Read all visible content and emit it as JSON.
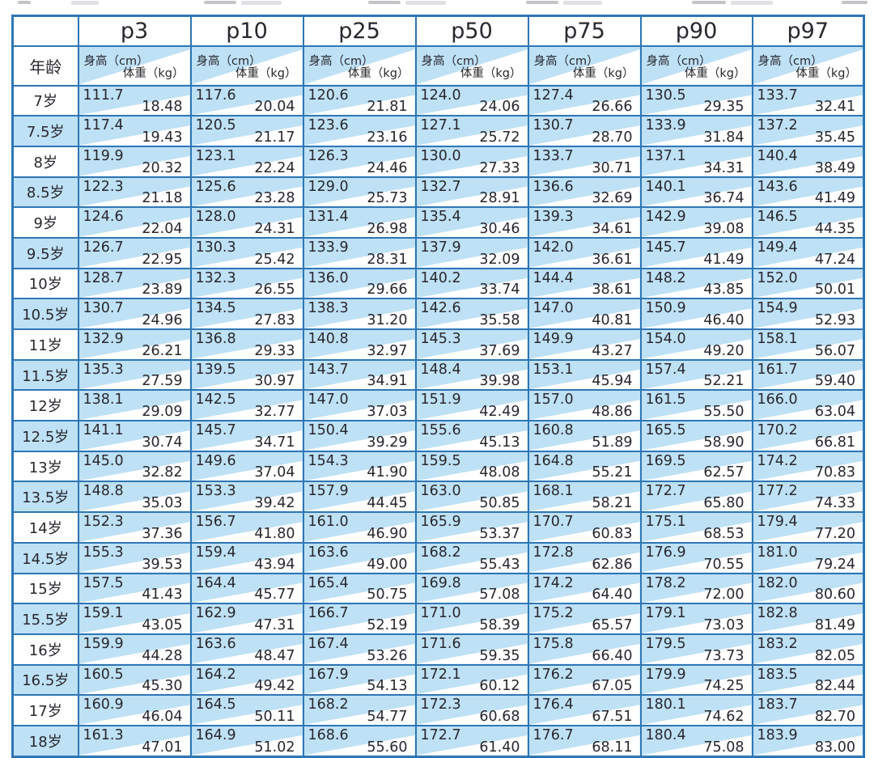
{
  "colors": {
    "border_blue": "#2e76b6",
    "cell_blue": "#bfe1f5",
    "text_dark": "#28282e"
  },
  "chart_data": {
    "type": "table",
    "columns": [
      "年龄",
      "p3",
      "p10",
      "p25",
      "p50",
      "p75",
      "p90",
      "p97"
    ],
    "unit_labels": {
      "height": "身高（cm）",
      "weight": "体重（kg）"
    },
    "rows": [
      {
        "age": "7岁",
        "cells": [
          [
            "111.7",
            "18.48"
          ],
          [
            "117.6",
            "20.04"
          ],
          [
            "120.6",
            "21.81"
          ],
          [
            "124.0",
            "24.06"
          ],
          [
            "127.4",
            "26.66"
          ],
          [
            "130.5",
            "29.35"
          ],
          [
            "133.7",
            "32.41"
          ]
        ]
      },
      {
        "age": "7.5岁",
        "cells": [
          [
            "117.4",
            "19.43"
          ],
          [
            "120.5",
            "21.17"
          ],
          [
            "123.6",
            "23.16"
          ],
          [
            "127.1",
            "25.72"
          ],
          [
            "130.7",
            "28.70"
          ],
          [
            "133.9",
            "31.84"
          ],
          [
            "137.2",
            "35.45"
          ]
        ]
      },
      {
        "age": "8岁",
        "cells": [
          [
            "119.9",
            "20.32"
          ],
          [
            "123.1",
            "22.24"
          ],
          [
            "126.3",
            "24.46"
          ],
          [
            "130.0",
            "27.33"
          ],
          [
            "133.7",
            "30.71"
          ],
          [
            "137.1",
            "34.31"
          ],
          [
            "140.4",
            "38.49"
          ]
        ]
      },
      {
        "age": "8.5岁",
        "cells": [
          [
            "122.3",
            "21.18"
          ],
          [
            "125.6",
            "23.28"
          ],
          [
            "129.0",
            "25.73"
          ],
          [
            "132.7",
            "28.91"
          ],
          [
            "136.6",
            "32.69"
          ],
          [
            "140.1",
            "36.74"
          ],
          [
            "143.6",
            "41.49"
          ]
        ]
      },
      {
        "age": "9岁",
        "cells": [
          [
            "124.6",
            "22.04"
          ],
          [
            "128.0",
            "24.31"
          ],
          [
            "131.4",
            "26.98"
          ],
          [
            "135.4",
            "30.46"
          ],
          [
            "139.3",
            "34.61"
          ],
          [
            "142.9",
            "39.08"
          ],
          [
            "146.5",
            "44.35"
          ]
        ]
      },
      {
        "age": "9.5岁",
        "cells": [
          [
            "126.7",
            "22.95"
          ],
          [
            "130.3",
            "25.42"
          ],
          [
            "133.9",
            "28.31"
          ],
          [
            "137.9",
            "32.09"
          ],
          [
            "142.0",
            "36.61"
          ],
          [
            "145.7",
            "41.49"
          ],
          [
            "149.4",
            "47.24"
          ]
        ]
      },
      {
        "age": "10岁",
        "cells": [
          [
            "128.7",
            "23.89"
          ],
          [
            "132.3",
            "26.55"
          ],
          [
            "136.0",
            "29.66"
          ],
          [
            "140.2",
            "33.74"
          ],
          [
            "144.4",
            "38.61"
          ],
          [
            "148.2",
            "43.85"
          ],
          [
            "152.0",
            "50.01"
          ]
        ]
      },
      {
        "age": "10.5岁",
        "cells": [
          [
            "130.7",
            "24.96"
          ],
          [
            "134.5",
            "27.83"
          ],
          [
            "138.3",
            "31.20"
          ],
          [
            "142.6",
            "35.58"
          ],
          [
            "147.0",
            "40.81"
          ],
          [
            "150.9",
            "46.40"
          ],
          [
            "154.9",
            "52.93"
          ]
        ]
      },
      {
        "age": "11岁",
        "cells": [
          [
            "132.9",
            "26.21"
          ],
          [
            "136.8",
            "29.33"
          ],
          [
            "140.8",
            "32.97"
          ],
          [
            "145.3",
            "37.69"
          ],
          [
            "149.9",
            "43.27"
          ],
          [
            "154.0",
            "49.20"
          ],
          [
            "158.1",
            "56.07"
          ]
        ]
      },
      {
        "age": "11.5岁",
        "cells": [
          [
            "135.3",
            "27.59"
          ],
          [
            "139.5",
            "30.97"
          ],
          [
            "143.7",
            "34.91"
          ],
          [
            "148.4",
            "39.98"
          ],
          [
            "153.1",
            "45.94"
          ],
          [
            "157.4",
            "52.21"
          ],
          [
            "161.7",
            "59.40"
          ]
        ]
      },
      {
        "age": "12岁",
        "cells": [
          [
            "138.1",
            "29.09"
          ],
          [
            "142.5",
            "32.77"
          ],
          [
            "147.0",
            "37.03"
          ],
          [
            "151.9",
            "42.49"
          ],
          [
            "157.0",
            "48.86"
          ],
          [
            "161.5",
            "55.50"
          ],
          [
            "166.0",
            "63.04"
          ]
        ]
      },
      {
        "age": "12.5岁",
        "cells": [
          [
            "141.1",
            "30.74"
          ],
          [
            "145.7",
            "34.71"
          ],
          [
            "150.4",
            "39.29"
          ],
          [
            "155.6",
            "45.13"
          ],
          [
            "160.8",
            "51.89"
          ],
          [
            "165.5",
            "58.90"
          ],
          [
            "170.2",
            "66.81"
          ]
        ]
      },
      {
        "age": "13岁",
        "cells": [
          [
            "145.0",
            "32.82"
          ],
          [
            "149.6",
            "37.04"
          ],
          [
            "154.3",
            "41.90"
          ],
          [
            "159.5",
            "48.08"
          ],
          [
            "164.8",
            "55.21"
          ],
          [
            "169.5",
            "62.57"
          ],
          [
            "174.2",
            "70.83"
          ]
        ]
      },
      {
        "age": "13.5岁",
        "cells": [
          [
            "148.8",
            "35.03"
          ],
          [
            "153.3",
            "39.42"
          ],
          [
            "157.9",
            "44.45"
          ],
          [
            "163.0",
            "50.85"
          ],
          [
            "168.1",
            "58.21"
          ],
          [
            "172.7",
            "65.80"
          ],
          [
            "177.2",
            "74.33"
          ]
        ]
      },
      {
        "age": "14岁",
        "cells": [
          [
            "152.3",
            "37.36"
          ],
          [
            "156.7",
            "41.80"
          ],
          [
            "161.0",
            "46.90"
          ],
          [
            "165.9",
            "53.37"
          ],
          [
            "170.7",
            "60.83"
          ],
          [
            "175.1",
            "68.53"
          ],
          [
            "179.4",
            "77.20"
          ]
        ]
      },
      {
        "age": "14.5岁",
        "cells": [
          [
            "155.3",
            "39.53"
          ],
          [
            "159.4",
            "43.94"
          ],
          [
            "163.6",
            "49.00"
          ],
          [
            "168.2",
            "55.43"
          ],
          [
            "172.8",
            "62.86"
          ],
          [
            "176.9",
            "70.55"
          ],
          [
            "181.0",
            "79.24"
          ]
        ]
      },
      {
        "age": "15岁",
        "cells": [
          [
            "157.5",
            "41.43"
          ],
          [
            "164.4",
            "45.77"
          ],
          [
            "165.4",
            "50.75"
          ],
          [
            "169.8",
            "57.08"
          ],
          [
            "174.2",
            "64.40"
          ],
          [
            "178.2",
            "72.00"
          ],
          [
            "182.0",
            "80.60"
          ]
        ]
      },
      {
        "age": "15.5岁",
        "cells": [
          [
            "159.1",
            "43.05"
          ],
          [
            "162.9",
            "47.31"
          ],
          [
            "166.7",
            "52.19"
          ],
          [
            "171.0",
            "58.39"
          ],
          [
            "175.2",
            "65.57"
          ],
          [
            "179.1",
            "73.03"
          ],
          [
            "182.8",
            "81.49"
          ]
        ]
      },
      {
        "age": "16岁",
        "cells": [
          [
            "159.9",
            "44.28"
          ],
          [
            "163.6",
            "48.47"
          ],
          [
            "167.4",
            "53.26"
          ],
          [
            "171.6",
            "59.35"
          ],
          [
            "175.8",
            "66.40"
          ],
          [
            "179.5",
            "73.73"
          ],
          [
            "183.2",
            "82.05"
          ]
        ]
      },
      {
        "age": "16.5岁",
        "cells": [
          [
            "160.5",
            "45.30"
          ],
          [
            "164.2",
            "49.42"
          ],
          [
            "167.9",
            "54.13"
          ],
          [
            "172.1",
            "60.12"
          ],
          [
            "176.2",
            "67.05"
          ],
          [
            "179.9",
            "74.25"
          ],
          [
            "183.5",
            "82.44"
          ]
        ]
      },
      {
        "age": "17岁",
        "cells": [
          [
            "160.9",
            "46.04"
          ],
          [
            "164.5",
            "50.11"
          ],
          [
            "168.2",
            "54.77"
          ],
          [
            "172.3",
            "60.68"
          ],
          [
            "176.4",
            "67.51"
          ],
          [
            "180.1",
            "74.62"
          ],
          [
            "183.7",
            "82.70"
          ]
        ]
      },
      {
        "age": "18岁",
        "cells": [
          [
            "161.3",
            "47.01"
          ],
          [
            "164.9",
            "51.02"
          ],
          [
            "168.6",
            "55.60"
          ],
          [
            "172.7",
            "61.40"
          ],
          [
            "176.7",
            "68.11"
          ],
          [
            "180.4",
            "75.08"
          ],
          [
            "183.9",
            "83.00"
          ]
        ]
      }
    ]
  }
}
